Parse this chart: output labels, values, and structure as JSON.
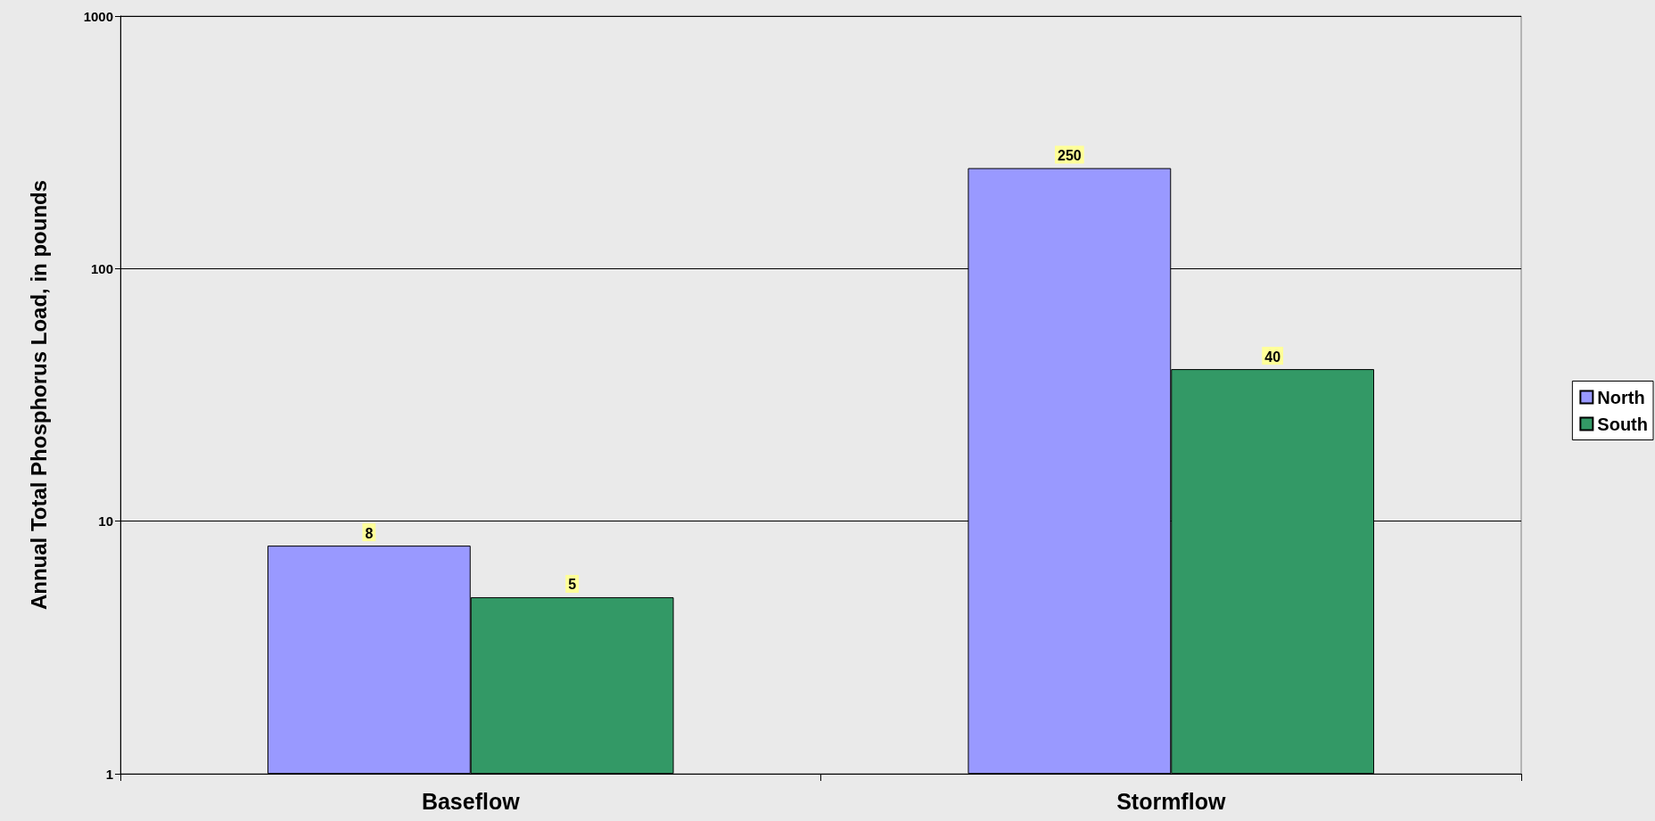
{
  "chart_data": {
    "type": "bar",
    "ylabel": "Annual Total Phosphorus Load, in pounds",
    "categories": [
      "Baseflow",
      "Stormflow"
    ],
    "series": [
      {
        "name": "North",
        "color": "#9999ff",
        "values": [
          8,
          250
        ]
      },
      {
        "name": "South",
        "color": "#339966",
        "values": [
          5,
          40
        ]
      }
    ],
    "log": "y",
    "ylim": [
      1,
      1000
    ],
    "yticks": [
      1,
      10,
      100,
      1000
    ],
    "grid": "y",
    "legend": "right",
    "data_labels": true
  }
}
